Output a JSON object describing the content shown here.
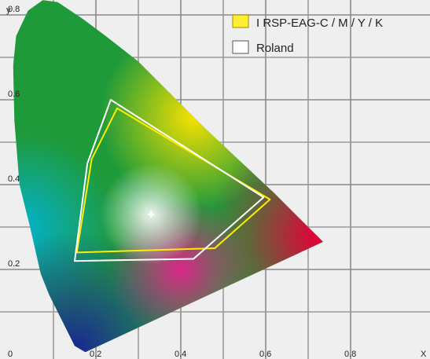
{
  "chart_data": {
    "type": "scatter",
    "title": "",
    "xlabel": "x",
    "ylabel": "y",
    "xlim": [
      0,
      0.9
    ],
    "ylim": [
      0,
      0.9
    ],
    "grid": true,
    "legend_position": "top-right",
    "x_ticks": [
      {
        "value": 0,
        "label": "0"
      },
      {
        "value": 0.2,
        "label": "0.2"
      },
      {
        "value": 0.4,
        "label": "0.4"
      },
      {
        "value": 0.6,
        "label": "0.6"
      },
      {
        "value": 0.8,
        "label": "0.8"
      }
    ],
    "y_ticks": [
      {
        "value": 0.2,
        "label": "0.2"
      },
      {
        "value": 0.4,
        "label": "0.4"
      },
      {
        "value": 0.6,
        "label": "0.6"
      },
      {
        "value": 0.8,
        "label": "0.8"
      }
    ],
    "x_axis_letter": "X",
    "y_axis_letter": "y",
    "white_point": {
      "x": 0.33,
      "y": 0.33
    },
    "spectral_locus": [
      [
        0.175,
        0.005
      ],
      [
        0.15,
        0.02
      ],
      [
        0.13,
        0.06
      ],
      [
        0.11,
        0.1
      ],
      [
        0.09,
        0.14
      ],
      [
        0.07,
        0.19
      ],
      [
        0.045,
        0.3
      ],
      [
        0.02,
        0.4
      ],
      [
        0.008,
        0.55
      ],
      [
        0.005,
        0.68
      ],
      [
        0.012,
        0.75
      ],
      [
        0.04,
        0.81
      ],
      [
        0.075,
        0.835
      ],
      [
        0.11,
        0.83
      ],
      [
        0.17,
        0.79
      ],
      [
        0.23,
        0.745
      ],
      [
        0.3,
        0.69
      ],
      [
        0.38,
        0.61
      ],
      [
        0.46,
        0.53
      ],
      [
        0.54,
        0.455
      ],
      [
        0.62,
        0.38
      ],
      [
        0.68,
        0.32
      ],
      [
        0.72,
        0.28
      ],
      [
        0.735,
        0.265
      ]
    ],
    "series": [
      {
        "name": "I RSP-EAG-C / M / Y / K",
        "color": "#ffee00",
        "fill_color": "#ffee33",
        "points": [
          [
            0.25,
            0.58
          ],
          [
            0.61,
            0.365
          ],
          [
            0.48,
            0.25
          ],
          [
            0.155,
            0.24
          ],
          [
            0.19,
            0.46
          ]
        ]
      },
      {
        "name": "Roland",
        "color": "#ffffff",
        "fill_color": "#ffffff",
        "points": [
          [
            0.235,
            0.6
          ],
          [
            0.595,
            0.37
          ],
          [
            0.43,
            0.225
          ],
          [
            0.15,
            0.22
          ],
          [
            0.18,
            0.45
          ]
        ]
      }
    ]
  }
}
